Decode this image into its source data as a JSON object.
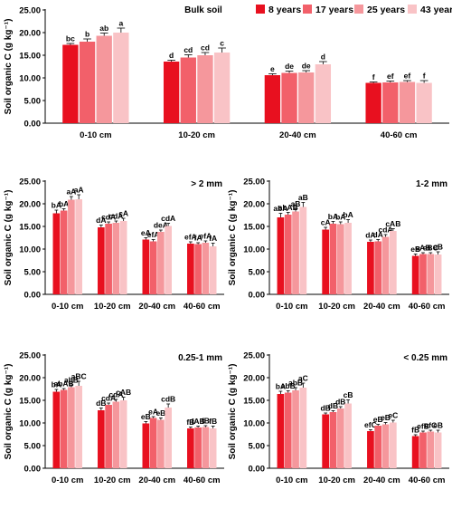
{
  "legend": {
    "items": [
      {
        "label": "8 years",
        "color": "#e8101f"
      },
      {
        "label": "17 years",
        "color": "#f2606a"
      },
      {
        "label": "25 years",
        "color": "#f5979c"
      },
      {
        "label": "43 years",
        "color": "#f9c3c6"
      }
    ]
  },
  "chart_data": [
    {
      "type": "bar",
      "title": "Bulk soil",
      "ylabel": "Soil organic C (g kg⁻¹)",
      "ylim": [
        0,
        25
      ],
      "yticks": [
        "0.00",
        "5.00",
        "10.00",
        "15.00",
        "20.00",
        "25.00"
      ],
      "categories": [
        "0-10 cm",
        "10-20 cm",
        "20-40 cm",
        "40-60 cm"
      ],
      "series": [
        {
          "name": "8 years",
          "values": [
            17.3,
            13.6,
            10.6,
            8.9
          ],
          "errors": [
            0.3,
            0.3,
            0.3,
            0.2
          ],
          "labels": [
            "bc",
            "d",
            "e",
            "f"
          ]
        },
        {
          "name": "17 years",
          "values": [
            18.0,
            14.5,
            11.1,
            9.0
          ],
          "errors": [
            0.6,
            0.6,
            0.4,
            0.3
          ],
          "labels": [
            "b",
            "cd",
            "de",
            "ef"
          ]
        },
        {
          "name": "25 years",
          "values": [
            19.3,
            15.0,
            11.2,
            9.1
          ],
          "errors": [
            0.6,
            0.6,
            0.4,
            0.3
          ],
          "labels": [
            "ab",
            "cd",
            "de",
            "ef"
          ]
        },
        {
          "name": "43 years",
          "values": [
            20.0,
            15.6,
            13.0,
            8.9
          ],
          "errors": [
            1.0,
            1.0,
            0.6,
            0.5
          ],
          "labels": [
            "a",
            "c",
            "d",
            "f"
          ]
        }
      ]
    },
    {
      "type": "bar",
      "title": "> 2 mm",
      "ylabel": "Soil organic C (g kg⁻¹)",
      "ylim": [
        0,
        25
      ],
      "yticks": [
        "0.00",
        "5.00",
        "10.00",
        "15.00",
        "20.00",
        "25.00"
      ],
      "categories": [
        "0-10 cm",
        "10-20 cm",
        "20-40 cm",
        "40-60 cm"
      ],
      "series": [
        {
          "name": "8 years",
          "values": [
            17.9,
            14.8,
            12.1,
            11.2
          ],
          "errors": [
            0.7,
            0.5,
            0.4,
            0.4
          ],
          "labels": [
            "bA",
            "dA",
            "eA",
            "efA"
          ]
        },
        {
          "name": "17 years",
          "values": [
            18.5,
            15.6,
            11.7,
            11.1
          ],
          "errors": [
            0.4,
            0.4,
            0.4,
            0.3
          ],
          "labels": [
            "bA",
            "cdA",
            "efA",
            "fA"
          ]
        },
        {
          "name": "25 years",
          "values": [
            20.9,
            15.8,
            13.8,
            11.4
          ],
          "errors": [
            0.7,
            0.4,
            0.4,
            0.4
          ],
          "labels": [
            "aA",
            "cdA",
            "deA",
            "efA"
          ]
        },
        {
          "name": "43 years",
          "values": [
            21.0,
            16.2,
            15.1,
            10.6
          ],
          "errors": [
            1.0,
            0.6,
            0.6,
            0.7
          ],
          "labels": [
            "aA",
            "cA",
            "cdA",
            "fA"
          ]
        }
      ]
    },
    {
      "type": "bar",
      "title": "1-2 mm",
      "ylabel": "Soil organic C (g kg⁻¹)",
      "ylim": [
        0,
        25
      ],
      "yticks": [
        "0.00",
        "5.00",
        "10.00",
        "15.00",
        "20.00",
        "25.00"
      ],
      "categories": [
        "0-10 cm",
        "10-20 cm",
        "20-40 cm",
        "40-60 cm"
      ],
      "series": [
        {
          "name": "8 years",
          "values": [
            17.0,
            14.3,
            11.6,
            8.5
          ],
          "errors": [
            0.9,
            0.5,
            0.4,
            0.4
          ],
          "labels": [
            "abA",
            "cA",
            "dA",
            "eB"
          ]
        },
        {
          "name": "17 years",
          "values": [
            17.6,
            15.6,
            11.7,
            8.9
          ],
          "errors": [
            0.5,
            0.5,
            0.4,
            0.3
          ],
          "labels": [
            "abAB",
            "bA",
            "dA",
            "eAB"
          ]
        },
        {
          "name": "25 years",
          "values": [
            18.3,
            15.5,
            12.7,
            8.9
          ],
          "errors": [
            0.6,
            0.5,
            0.5,
            0.3
          ],
          "labels": [
            "aB",
            "bA",
            "cdA",
            "eBC"
          ]
        },
        {
          "name": "43 years",
          "values": [
            19.3,
            15.8,
            14.0,
            8.8
          ],
          "errors": [
            1.0,
            0.7,
            0.5,
            0.6
          ],
          "labels": [
            "aB",
            "bA",
            "cAB",
            "eB"
          ]
        }
      ]
    },
    {
      "type": "bar",
      "title": "0.25-1 mm",
      "ylabel": "Soil organic C (g kg⁻¹)",
      "ylim": [
        0,
        25
      ],
      "yticks": [
        "0.00",
        "5.00",
        "10.00",
        "15.00",
        "20.00",
        "25.00"
      ],
      "categories": [
        "0-10 cm",
        "10-20 cm",
        "20-40 cm",
        "40-60 cm"
      ],
      "series": [
        {
          "name": "8 years",
          "values": [
            16.9,
            12.8,
            9.9,
            8.8
          ],
          "errors": [
            0.5,
            0.5,
            0.4,
            0.3
          ],
          "labels": [
            "bA",
            "dB",
            "eB",
            "fB"
          ]
        },
        {
          "name": "17 years",
          "values": [
            17.3,
            14.0,
            11.1,
            9.0
          ],
          "errors": [
            0.3,
            0.4,
            0.3,
            0.3
          ],
          "labels": [
            "abAB",
            "cdA",
            "eA",
            "fAB"
          ]
        },
        {
          "name": "25 years",
          "values": [
            17.9,
            14.7,
            10.7,
            9.1
          ],
          "errors": [
            0.5,
            0.5,
            0.4,
            0.3
          ],
          "labels": [
            "abB",
            "cdA",
            "eB",
            "fB"
          ]
        },
        {
          "name": "43 years",
          "values": [
            18.2,
            15.0,
            13.4,
            8.8
          ],
          "errors": [
            1.0,
            0.7,
            0.8,
            0.5
          ],
          "labels": [
            "aBC",
            "cAB",
            "cdB",
            "fB"
          ]
        }
      ]
    },
    {
      "type": "bar",
      "title": "< 0.25 mm",
      "ylabel": "Soil organic C (g kg⁻¹)",
      "ylim": [
        0,
        25
      ],
      "yticks": [
        "0.00",
        "5.00",
        "10.00",
        "15.00",
        "20.00",
        "25.00"
      ],
      "categories": [
        "0-10 cm",
        "10-20 cm",
        "20-40 cm",
        "40-60 cm"
      ],
      "series": [
        {
          "name": "8 years",
          "values": [
            16.4,
            11.9,
            8.2,
            7.1
          ],
          "errors": [
            0.6,
            0.3,
            0.3,
            0.3
          ],
          "labels": [
            "bA",
            "dB",
            "efC",
            "fB"
          ]
        },
        {
          "name": "17 years",
          "values": [
            16.7,
            12.4,
            9.4,
            7.9
          ],
          "errors": [
            0.4,
            0.3,
            0.3,
            0.3
          ],
          "labels": [
            "abB",
            "dB",
            "eB",
            "efB"
          ]
        },
        {
          "name": "25 years",
          "values": [
            17.2,
            13.2,
            9.7,
            8.1
          ],
          "errors": [
            0.6,
            0.4,
            0.4,
            0.3
          ],
          "labels": [
            "abB",
            "dB",
            "eB",
            "efC"
          ]
        },
        {
          "name": "43 years",
          "values": [
            17.8,
            14.3,
            10.1,
            7.9
          ],
          "errors": [
            1.0,
            0.8,
            0.5,
            0.5
          ],
          "labels": [
            "aC",
            "cB",
            "eC",
            "eB"
          ]
        }
      ]
    }
  ]
}
